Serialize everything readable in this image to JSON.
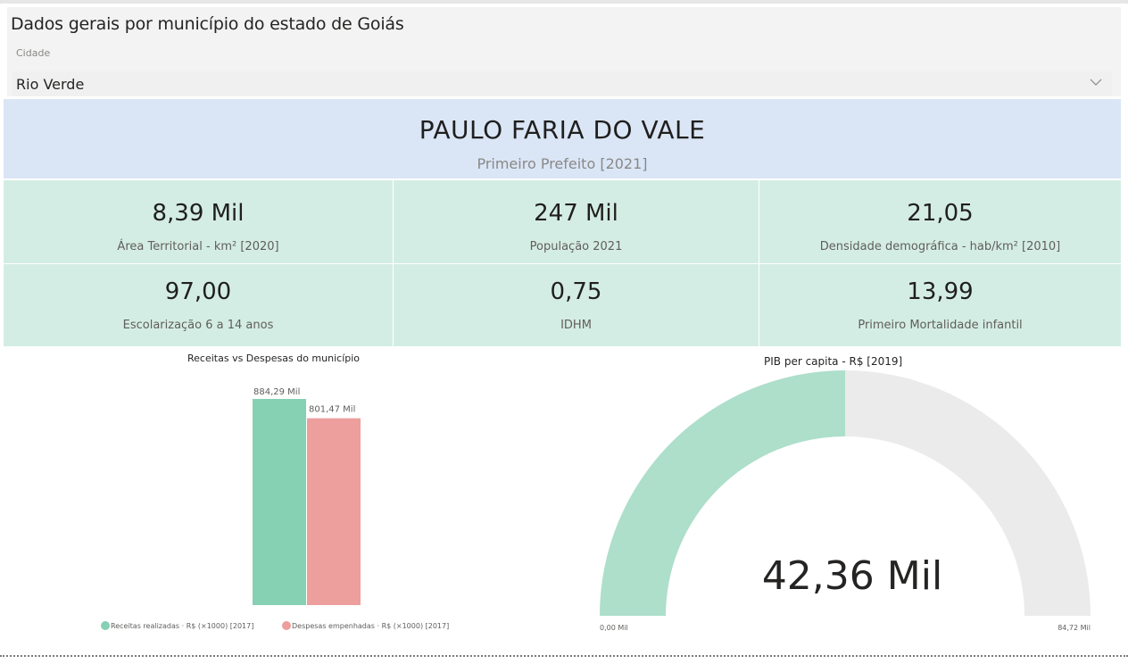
{
  "header": {
    "title": "Dados gerais por município do estado de Goiás",
    "filter_label": "Cidade",
    "filter_value": "Rio Verde"
  },
  "mayor": {
    "name": "PAULO FARIA DO VALE",
    "subtitle": "Primeiro Prefeito [2021]"
  },
  "kpis": [
    {
      "value": "8,39 Mil",
      "label": "Área Territorial - km² [2020]"
    },
    {
      "value": "247 Mil",
      "label": "População 2021"
    },
    {
      "value": "21,05",
      "label": "Densidade demográfica - hab/km² [2010]"
    },
    {
      "value": "97,00",
      "label": "Escolarização 6 a 14 anos"
    },
    {
      "value": "0,75",
      "label": "IDHM"
    },
    {
      "value": "13,99",
      "label": "Primeiro Mortalidade infantil"
    }
  ],
  "colors": {
    "receitas": "#86d0b4",
    "despesas": "#ec9f9d",
    "gauge_fill": "#addfcb",
    "gauge_bg": "#ebebeb",
    "mayor_bg": "#dae6f6",
    "kpi_bg": "#d4ede4"
  },
  "chart_data": [
    {
      "type": "bar",
      "title": "Receitas vs Despesas do município",
      "series": [
        {
          "name": "Receitas realizadas - R$ (×1000) [2017]",
          "value": 884.29,
          "label": "884,29 Mil"
        },
        {
          "name": "Despesas empenhadas - R$ (×1000) [2017]",
          "value": 801.47,
          "label": "801,47 Mil"
        }
      ],
      "legend_position": "bottom",
      "legend": [
        {
          "text": "Receitas realizadas",
          "sep": " · ",
          "unit": "R$ (×1000) [2017]"
        },
        {
          "text": "Despesas empenhadas",
          "sep": " · ",
          "unit": "R$ (×1000) [2017]"
        }
      ]
    },
    {
      "type": "gauge",
      "title": "PIB per capita - R$ [2019]",
      "value": 42.36,
      "value_label": "42,36 Mil",
      "min": 0,
      "max": 84.72,
      "min_label": "0,00 Mil",
      "max_label": "84,72 Mil"
    }
  ]
}
